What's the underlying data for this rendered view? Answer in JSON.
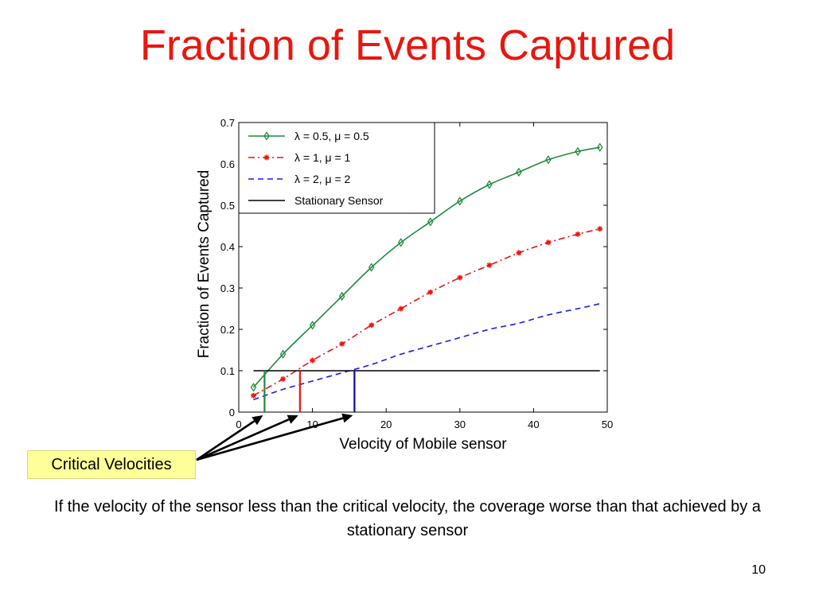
{
  "slide": {
    "title": "Fraction of Events Captured",
    "callout_label": "Critical Velocities",
    "caption": "If the velocity of the sensor less than the critical velocity, the coverage worse than that achieved by a stationary sensor",
    "page_number": "10"
  },
  "colors": {
    "title": "#e8170f",
    "series_1": "#1f8a3c",
    "series_2": "#ee1111",
    "series_3": "#1a1aee",
    "series_4": "#000000",
    "callout_bg": "#ffff99"
  },
  "chart_data": {
    "type": "line",
    "title": "",
    "xlabel": "Velocity of Mobile sensor",
    "ylabel": "Fraction of Events Captured",
    "xlim": [
      0,
      50
    ],
    "ylim": [
      0,
      0.7
    ],
    "xticks": [
      0,
      10,
      20,
      30,
      40,
      50
    ],
    "yticks": [
      0,
      0.1,
      0.2,
      0.3,
      0.4,
      0.5,
      0.6,
      0.7
    ],
    "grid": false,
    "legend_position": "top-left",
    "x": [
      2,
      6,
      10,
      14,
      18,
      22,
      26,
      30,
      34,
      38,
      42,
      46,
      49
    ],
    "series": [
      {
        "name": "λ = 0.5, μ = 0.5",
        "style": "solid-diamond",
        "values": [
          0.06,
          0.14,
          0.21,
          0.28,
          0.35,
          0.41,
          0.46,
          0.51,
          0.55,
          0.58,
          0.61,
          0.63,
          0.64
        ]
      },
      {
        "name": "λ = 1, μ = 1",
        "style": "dashdot-star",
        "values": [
          0.04,
          0.08,
          0.125,
          0.165,
          0.21,
          0.25,
          0.29,
          0.325,
          0.355,
          0.385,
          0.41,
          0.43,
          0.443
        ]
      },
      {
        "name": "λ = 2, μ = 2",
        "style": "dashed",
        "values": [
          0.03,
          0.055,
          0.075,
          0.095,
          0.115,
          0.14,
          0.16,
          0.18,
          0.2,
          0.215,
          0.235,
          0.25,
          0.262
        ]
      },
      {
        "name": "Stationary Sensor",
        "style": "solid",
        "x": [
          2,
          49
        ],
        "values": [
          0.1,
          0.1
        ]
      }
    ],
    "critical_velocities": [
      {
        "series": "λ = 0.5, μ = 0.5",
        "x": 3.5,
        "y": 0.1
      },
      {
        "series": "λ = 1, μ = 1",
        "x": 8.3,
        "y": 0.1
      },
      {
        "series": "λ = 2, μ = 2",
        "x": 15.7,
        "y": 0.1
      }
    ]
  }
}
